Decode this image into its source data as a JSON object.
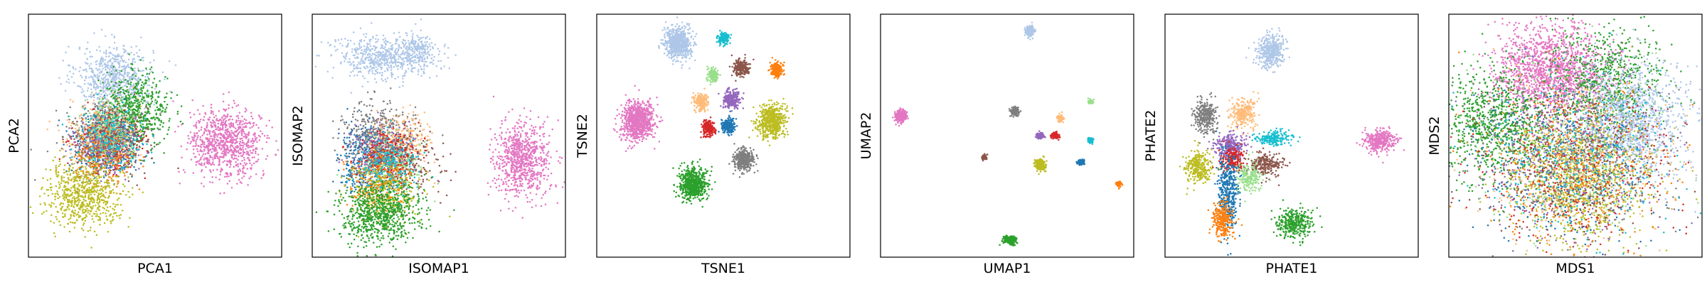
{
  "colors": {
    "blue": "#1f77b4",
    "light_blue": "#aec7e8",
    "orange": "#ff7f0e",
    "light_orange": "#ffbb78",
    "green": "#2ca02c",
    "light_green": "#98df8a",
    "red": "#d62728",
    "purple": "#9467bd",
    "brown": "#8c564b",
    "pink": "#e377c2",
    "gray": "#7f7f7f",
    "olive": "#bcbd22",
    "cyan": "#17becf"
  },
  "chart_data": [
    {
      "type": "scatter",
      "xlabel": "PCA1",
      "ylabel": "PCA2",
      "xlim": [
        0,
        100
      ],
      "ylim": [
        0,
        100
      ],
      "grid": false,
      "legend": "none",
      "clusters": [
        {
          "color": "light_blue",
          "cx": 34,
          "cy": 74,
          "sx": 7.5,
          "sy": 6.5,
          "n": 700
        },
        {
          "color": "green",
          "cx": 42,
          "cy": 60,
          "sx": 6.5,
          "sy": 7.5,
          "n": 650
        },
        {
          "color": "gray",
          "cx": 30,
          "cy": 50,
          "sx": 7,
          "sy": 6.5,
          "n": 450
        },
        {
          "color": "blue",
          "cx": 31,
          "cy": 47,
          "sx": 7,
          "sy": 7,
          "n": 300
        },
        {
          "color": "red",
          "cx": 32,
          "cy": 47,
          "sx": 6.5,
          "sy": 6.5,
          "n": 250
        },
        {
          "color": "light_orange",
          "cx": 29,
          "cy": 52,
          "sx": 6.5,
          "sy": 6.5,
          "n": 250
        },
        {
          "color": "purple",
          "cx": 30,
          "cy": 46,
          "sx": 6.5,
          "sy": 6.5,
          "n": 250
        },
        {
          "color": "brown",
          "cx": 33,
          "cy": 46,
          "sx": 7,
          "sy": 7,
          "n": 250
        },
        {
          "color": "orange",
          "cx": 30,
          "cy": 42,
          "sx": 6.5,
          "sy": 6.5,
          "n": 200
        },
        {
          "color": "light_green",
          "cx": 33,
          "cy": 53,
          "sx": 6,
          "sy": 6,
          "n": 200
        },
        {
          "color": "cyan",
          "cx": 32,
          "cy": 49,
          "sx": 6.5,
          "sy": 6.5,
          "n": 200
        },
        {
          "color": "olive",
          "cx": 22,
          "cy": 26,
          "sx": 7.5,
          "sy": 6.5,
          "n": 700
        },
        {
          "color": "pink",
          "cx": 78,
          "cy": 47,
          "sx": 7,
          "sy": 7,
          "n": 900
        }
      ]
    },
    {
      "type": "scatter",
      "xlabel": "ISOMAP1",
      "ylabel": "ISOMAP2",
      "xlim": [
        0,
        100
      ],
      "ylim": [
        0,
        100
      ],
      "grid": false,
      "legend": "none",
      "clusters": [
        {
          "color": "light_blue",
          "cx": 28,
          "cy": 82,
          "sx": 10,
          "sy": 4.5,
          "n": 600
        },
        {
          "color": "light_blue",
          "cx": 42,
          "cy": 85,
          "sx": 3.5,
          "sy": 3.5,
          "n": 150
        },
        {
          "color": "gray",
          "cx": 26,
          "cy": 50,
          "sx": 7,
          "sy": 6,
          "n": 450
        },
        {
          "color": "light_orange",
          "cx": 35,
          "cy": 47,
          "sx": 6,
          "sy": 6,
          "n": 300
        },
        {
          "color": "blue",
          "cx": 20,
          "cy": 40,
          "sx": 5,
          "sy": 7,
          "n": 300
        },
        {
          "color": "purple",
          "cx": 28,
          "cy": 42,
          "sx": 6.5,
          "sy": 6,
          "n": 250
        },
        {
          "color": "brown",
          "cx": 35,
          "cy": 38,
          "sx": 8,
          "sy": 7,
          "n": 250
        },
        {
          "color": "red",
          "cx": 30,
          "cy": 40,
          "sx": 6,
          "sy": 6,
          "n": 250
        },
        {
          "color": "light_green",
          "cx": 31,
          "cy": 36,
          "sx": 6,
          "sy": 6,
          "n": 200
        },
        {
          "color": "orange",
          "cx": 25,
          "cy": 32,
          "sx": 6,
          "sy": 7,
          "n": 250
        },
        {
          "color": "olive",
          "cx": 28,
          "cy": 26,
          "sx": 7,
          "sy": 6,
          "n": 300
        },
        {
          "color": "cyan",
          "cx": 30,
          "cy": 38,
          "sx": 6,
          "sy": 6,
          "n": 200
        },
        {
          "color": "green",
          "cx": 26,
          "cy": 18,
          "sx": 8,
          "sy": 6.5,
          "n": 750
        },
        {
          "color": "pink",
          "cx": 83,
          "cy": 40,
          "sx": 5.5,
          "sy": 7.5,
          "n": 800
        }
      ]
    },
    {
      "type": "scatter",
      "xlabel": "TSNE1",
      "ylabel": "TSNE2",
      "xlim": [
        0,
        100
      ],
      "ylim": [
        0,
        100
      ],
      "grid": false,
      "legend": "none",
      "clusters": [
        {
          "color": "light_blue",
          "cx": 32,
          "cy": 88,
          "sx": 2.6,
          "sy": 3.2,
          "n": 700
        },
        {
          "color": "cyan",
          "cx": 50,
          "cy": 90,
          "sx": 1.2,
          "sy": 1.3,
          "n": 150
        },
        {
          "color": "brown",
          "cx": 57,
          "cy": 78,
          "sx": 1.5,
          "sy": 1.7,
          "n": 250
        },
        {
          "color": "orange",
          "cx": 71,
          "cy": 77,
          "sx": 1.3,
          "sy": 1.5,
          "n": 200
        },
        {
          "color": "light_green",
          "cx": 46,
          "cy": 75,
          "sx": 1.1,
          "sy": 1.3,
          "n": 150
        },
        {
          "color": "light_orange",
          "cx": 41,
          "cy": 64,
          "sx": 1.4,
          "sy": 1.7,
          "n": 200
        },
        {
          "color": "purple",
          "cx": 53,
          "cy": 65,
          "sx": 1.6,
          "sy": 1.9,
          "n": 250
        },
        {
          "color": "olive",
          "cx": 69,
          "cy": 56,
          "sx": 2.6,
          "sy": 3.2,
          "n": 600
        },
        {
          "color": "red",
          "cx": 44,
          "cy": 53,
          "sx": 1.3,
          "sy": 1.6,
          "n": 200
        },
        {
          "color": "blue",
          "cx": 52,
          "cy": 54,
          "sx": 1.3,
          "sy": 1.6,
          "n": 200
        },
        {
          "color": "pink",
          "cx": 16,
          "cy": 56,
          "sx": 3.2,
          "sy": 4.0,
          "n": 850
        },
        {
          "color": "gray",
          "cx": 58,
          "cy": 40,
          "sx": 1.9,
          "sy": 2.2,
          "n": 400
        },
        {
          "color": "green",
          "cx": 38,
          "cy": 30,
          "sx": 2.6,
          "sy": 3.2,
          "n": 700
        }
      ]
    },
    {
      "type": "scatter",
      "xlabel": "UMAP1",
      "ylabel": "UMAP2",
      "xlim": [
        0,
        100
      ],
      "ylim": [
        0,
        100
      ],
      "grid": false,
      "legend": "none",
      "clusters": [
        {
          "color": "light_blue",
          "cx": 59,
          "cy": 93,
          "sx": 0.9,
          "sy": 1.1,
          "n": 200
        },
        {
          "color": "pink",
          "cx": 8,
          "cy": 58,
          "sx": 1.1,
          "sy": 1.3,
          "n": 250
        },
        {
          "color": "gray",
          "cx": 53,
          "cy": 60,
          "sx": 0.8,
          "sy": 0.9,
          "n": 150
        },
        {
          "color": "light_orange",
          "cx": 71,
          "cy": 57,
          "sx": 0.6,
          "sy": 0.7,
          "n": 90
        },
        {
          "color": "light_green",
          "cx": 83,
          "cy": 64,
          "sx": 0.5,
          "sy": 0.5,
          "n": 60
        },
        {
          "color": "purple",
          "cx": 63,
          "cy": 50,
          "sx": 0.8,
          "sy": 0.6,
          "n": 120
        },
        {
          "color": "red",
          "cx": 69,
          "cy": 50,
          "sx": 0.7,
          "sy": 0.6,
          "n": 110
        },
        {
          "color": "cyan",
          "cx": 83,
          "cy": 48,
          "sx": 0.5,
          "sy": 0.5,
          "n": 60
        },
        {
          "color": "brown",
          "cx": 41,
          "cy": 41,
          "sx": 0.5,
          "sy": 0.6,
          "n": 60
        },
        {
          "color": "olive",
          "cx": 63,
          "cy": 38,
          "sx": 1.0,
          "sy": 1.1,
          "n": 200
        },
        {
          "color": "blue",
          "cx": 79,
          "cy": 39,
          "sx": 0.7,
          "sy": 0.6,
          "n": 80
        },
        {
          "color": "orange",
          "cx": 94,
          "cy": 30,
          "sx": 0.5,
          "sy": 0.6,
          "n": 60
        },
        {
          "color": "green",
          "cx": 51,
          "cy": 7,
          "sx": 1.3,
          "sy": 0.8,
          "n": 200
        }
      ]
    },
    {
      "type": "scatter",
      "xlabel": "PHATE1",
      "ylabel": "PHATE2",
      "xlim": [
        0,
        100
      ],
      "ylim": [
        0,
        100
      ],
      "grid": false,
      "legend": "none",
      "clusters": [
        {
          "color": "light_blue",
          "cx": 42,
          "cy": 85,
          "sx": 2.8,
          "sy": 3.5,
          "n": 400
        },
        {
          "color": "gray",
          "cx": 16,
          "cy": 58,
          "sx": 2.3,
          "sy": 3.5,
          "n": 300
        },
        {
          "color": "light_orange",
          "cx": 31,
          "cy": 59,
          "sx": 2.6,
          "sy": 3.0,
          "n": 250
        },
        {
          "color": "cyan",
          "cx": 43,
          "cy": 49,
          "sx": 3.3,
          "sy": 1.4,
          "n": 200
        },
        {
          "color": "purple",
          "cx": 26,
          "cy": 46,
          "sx": 3.0,
          "sy": 2.6,
          "n": 250
        },
        {
          "color": "red",
          "cx": 27,
          "cy": 40,
          "sx": 2.3,
          "sy": 2.6,
          "n": 200
        },
        {
          "color": "brown",
          "cx": 40,
          "cy": 38,
          "sx": 3.5,
          "sy": 2.3,
          "n": 250
        },
        {
          "color": "light_green",
          "cx": 33,
          "cy": 33,
          "sx": 2.3,
          "sy": 3.0,
          "n": 200
        },
        {
          "color": "olive",
          "cx": 13,
          "cy": 37,
          "sx": 2.6,
          "sy": 3.0,
          "n": 300
        },
        {
          "color": "blue",
          "cx": 25,
          "cy": 27,
          "sx": 2.0,
          "sy": 8.0,
          "n": 400
        },
        {
          "color": "orange",
          "cx": 23,
          "cy": 15,
          "sx": 2.0,
          "sy": 3.5,
          "n": 250
        },
        {
          "color": "green",
          "cx": 51,
          "cy": 14,
          "sx": 3.5,
          "sy": 2.8,
          "n": 350
        },
        {
          "color": "pink",
          "cx": 85,
          "cy": 48,
          "sx": 3.0,
          "sy": 2.3,
          "n": 350
        }
      ]
    },
    {
      "type": "scatter",
      "xlabel": "MDS1",
      "ylabel": "MDS2",
      "xlim": [
        0,
        100
      ],
      "ylim": [
        0,
        100
      ],
      "grid": false,
      "legend": "none",
      "clusters": [
        {
          "color": "pink",
          "cx": 40,
          "cy": 77,
          "sx": 11,
          "sy": 9,
          "n": 1500
        },
        {
          "color": "green",
          "cx": 18,
          "cy": 55,
          "sx": 11,
          "sy": 11,
          "n": 900
        },
        {
          "color": "green",
          "cx": 63,
          "cy": 72,
          "sx": 11,
          "sy": 12,
          "n": 700
        },
        {
          "color": "light_blue",
          "cx": 72,
          "cy": 56,
          "sx": 11,
          "sy": 12,
          "n": 1200
        },
        {
          "color": "olive",
          "cx": 52,
          "cy": 33,
          "sx": 13,
          "sy": 13,
          "n": 1000
        },
        {
          "color": "gray",
          "cx": 50,
          "cy": 42,
          "sx": 19,
          "sy": 17,
          "n": 400
        },
        {
          "color": "blue",
          "cx": 45,
          "cy": 40,
          "sx": 20,
          "sy": 17,
          "n": 400
        },
        {
          "color": "red",
          "cx": 50,
          "cy": 38,
          "sx": 19,
          "sy": 17,
          "n": 350
        },
        {
          "color": "purple",
          "cx": 47,
          "cy": 40,
          "sx": 19,
          "sy": 17,
          "n": 350
        },
        {
          "color": "brown",
          "cx": 52,
          "cy": 38,
          "sx": 19,
          "sy": 17,
          "n": 350
        },
        {
          "color": "orange",
          "cx": 48,
          "cy": 36,
          "sx": 19,
          "sy": 17,
          "n": 350
        },
        {
          "color": "light_orange",
          "cx": 50,
          "cy": 42,
          "sx": 19,
          "sy": 17,
          "n": 300
        },
        {
          "color": "light_green",
          "cx": 49,
          "cy": 40,
          "sx": 19,
          "sy": 17,
          "n": 300
        },
        {
          "color": "cyan",
          "cx": 51,
          "cy": 40,
          "sx": 19,
          "sy": 17,
          "n": 300
        }
      ]
    }
  ]
}
